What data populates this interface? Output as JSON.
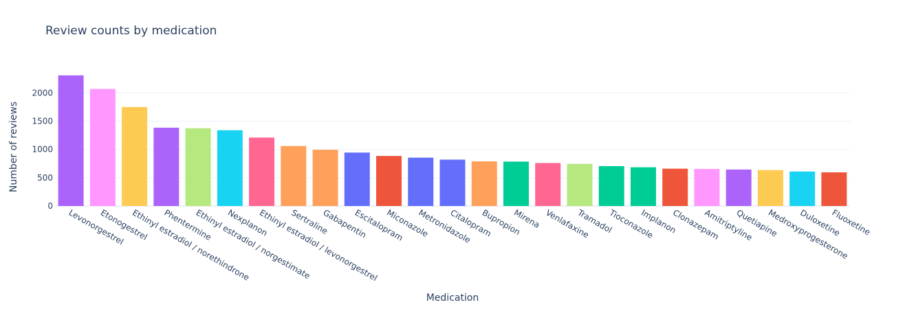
{
  "chart_data": {
    "type": "bar",
    "title": "Review counts by medication",
    "xlabel": "Medication",
    "ylabel": "Number of reviews",
    "ylim": [
      0,
      2380
    ],
    "yticks": [
      0,
      500,
      1000,
      1500,
      2000
    ],
    "grid": true,
    "legend": "none",
    "categories": [
      "Levonorgestrel",
      "Etonogestrel",
      "Ethinyl estradiol / norethindrone",
      "Phentermine",
      "Ethinyl estradiol / norgestimate",
      "Nexplanon",
      "Ethinyl estradiol / levonorgestrel",
      "Sertraline",
      "Gabapentin",
      "Escitalopram",
      "Miconazole",
      "Metronidazole",
      "Citalopram",
      "Bupropion",
      "Mirena",
      "Venlafaxine",
      "Tramadol",
      "Tioconazole",
      "Implanon",
      "Clonazepam",
      "Amitriptyline",
      "Quetiapine",
      "Medroxyprogesterone",
      "Duloxetine",
      "Fluoxetine"
    ],
    "values": [
      2310,
      2070,
      1750,
      1385,
      1375,
      1340,
      1210,
      1060,
      995,
      945,
      885,
      855,
      820,
      790,
      785,
      760,
      745,
      705,
      685,
      660,
      655,
      645,
      635,
      610,
      595
    ],
    "colors": [
      "#ab63fa",
      "#ff97ff",
      "#fecb52",
      "#ab63fa",
      "#b6e880",
      "#19d3f3",
      "#ff6692",
      "#ffa15a",
      "#ffa15a",
      "#636efa",
      "#ef553b",
      "#636efa",
      "#636efa",
      "#ffa15a",
      "#00cc96",
      "#ff6692",
      "#b6e880",
      "#00cc96",
      "#00cc96",
      "#ef553b",
      "#ff97ff",
      "#ab63fa",
      "#fecb52",
      "#19d3f3",
      "#ef553b"
    ]
  }
}
